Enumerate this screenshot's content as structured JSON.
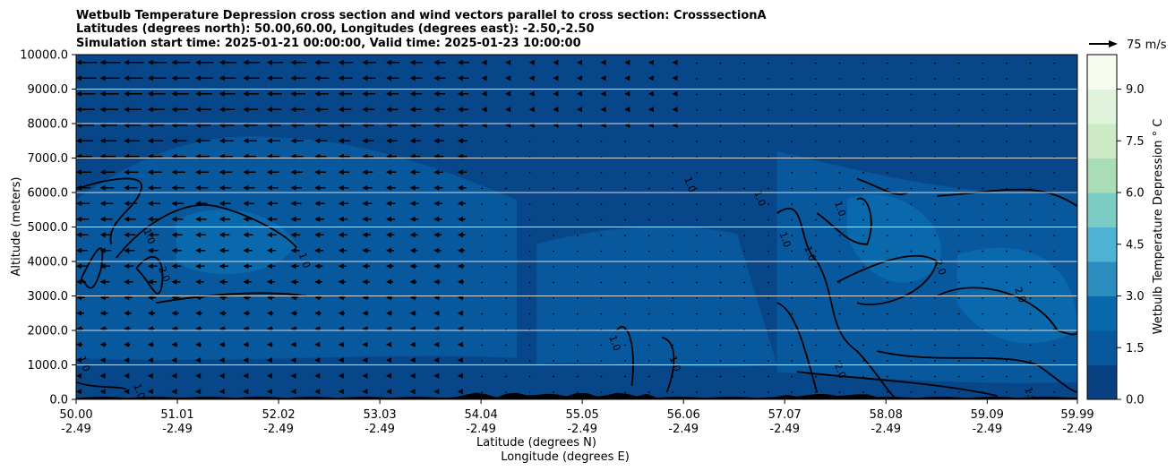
{
  "chart_data": {
    "type": "heatmap",
    "title_lines": [
      "Wetbulb Temperature Depression cross section and wind vectors parallel to cross section: CrosssectionA",
      "Latitudes (degrees north): 50.00,60.00, Longitudes (degrees east): -2.50,-2.50",
      "Simulation start time: 2025-01-21 00:00:00, Valid time: 2025-01-23 10:00:00"
    ],
    "ylabel": "Altitude (meters)",
    "xlabel_1": "Latitude (degrees N)",
    "xlabel_2": "Longitude (degrees E)",
    "ylim": [
      0,
      10000
    ],
    "xlim": [
      50.0,
      59.99
    ],
    "y_ticks": [
      "0.0",
      "1000.0",
      "2000.0",
      "3000.0",
      "4000.0",
      "5000.0",
      "6000.0",
      "7000.0",
      "8000.0",
      "9000.0",
      "10000.0"
    ],
    "x_ticks": [
      {
        "lat": "50.00",
        "lon": "-2.49"
      },
      {
        "lat": "51.01",
        "lon": "-2.49"
      },
      {
        "lat": "52.02",
        "lon": "-2.49"
      },
      {
        "lat": "53.03",
        "lon": "-2.49"
      },
      {
        "lat": "54.04",
        "lon": "-2.49"
      },
      {
        "lat": "55.05",
        "lon": "-2.49"
      },
      {
        "lat": "56.06",
        "lon": "-2.49"
      },
      {
        "lat": "57.07",
        "lon": "-2.49"
      },
      {
        "lat": "58.08",
        "lon": "-2.49"
      },
      {
        "lat": "59.09",
        "lon": "-2.49"
      },
      {
        "lat": "59.99",
        "lon": "-2.49"
      }
    ],
    "grid": "horizontal",
    "colorbar": {
      "label": "Wetbulb Temperature Depression $^\\circ$C",
      "range": [
        0.0,
        10.0
      ],
      "ticks": [
        "0.0",
        "1.5",
        "3.0",
        "4.5",
        "6.0",
        "7.5",
        "9.0"
      ],
      "colors": [
        "#084081",
        "#08589e",
        "#0868ac",
        "#2b8cbe",
        "#4eb3d3",
        "#7bccc4",
        "#a8ddb5",
        "#ccebc5",
        "#e0f3db",
        "#f7fcf0"
      ]
    },
    "wind_key": {
      "label": "75 m/s"
    },
    "contour_labels": [
      "1.0",
      "2.0"
    ],
    "field_colors": {
      "low": "#08468a",
      "mid": "#08589e",
      "high": "#0a68ac",
      "terrain": "#000000"
    }
  }
}
